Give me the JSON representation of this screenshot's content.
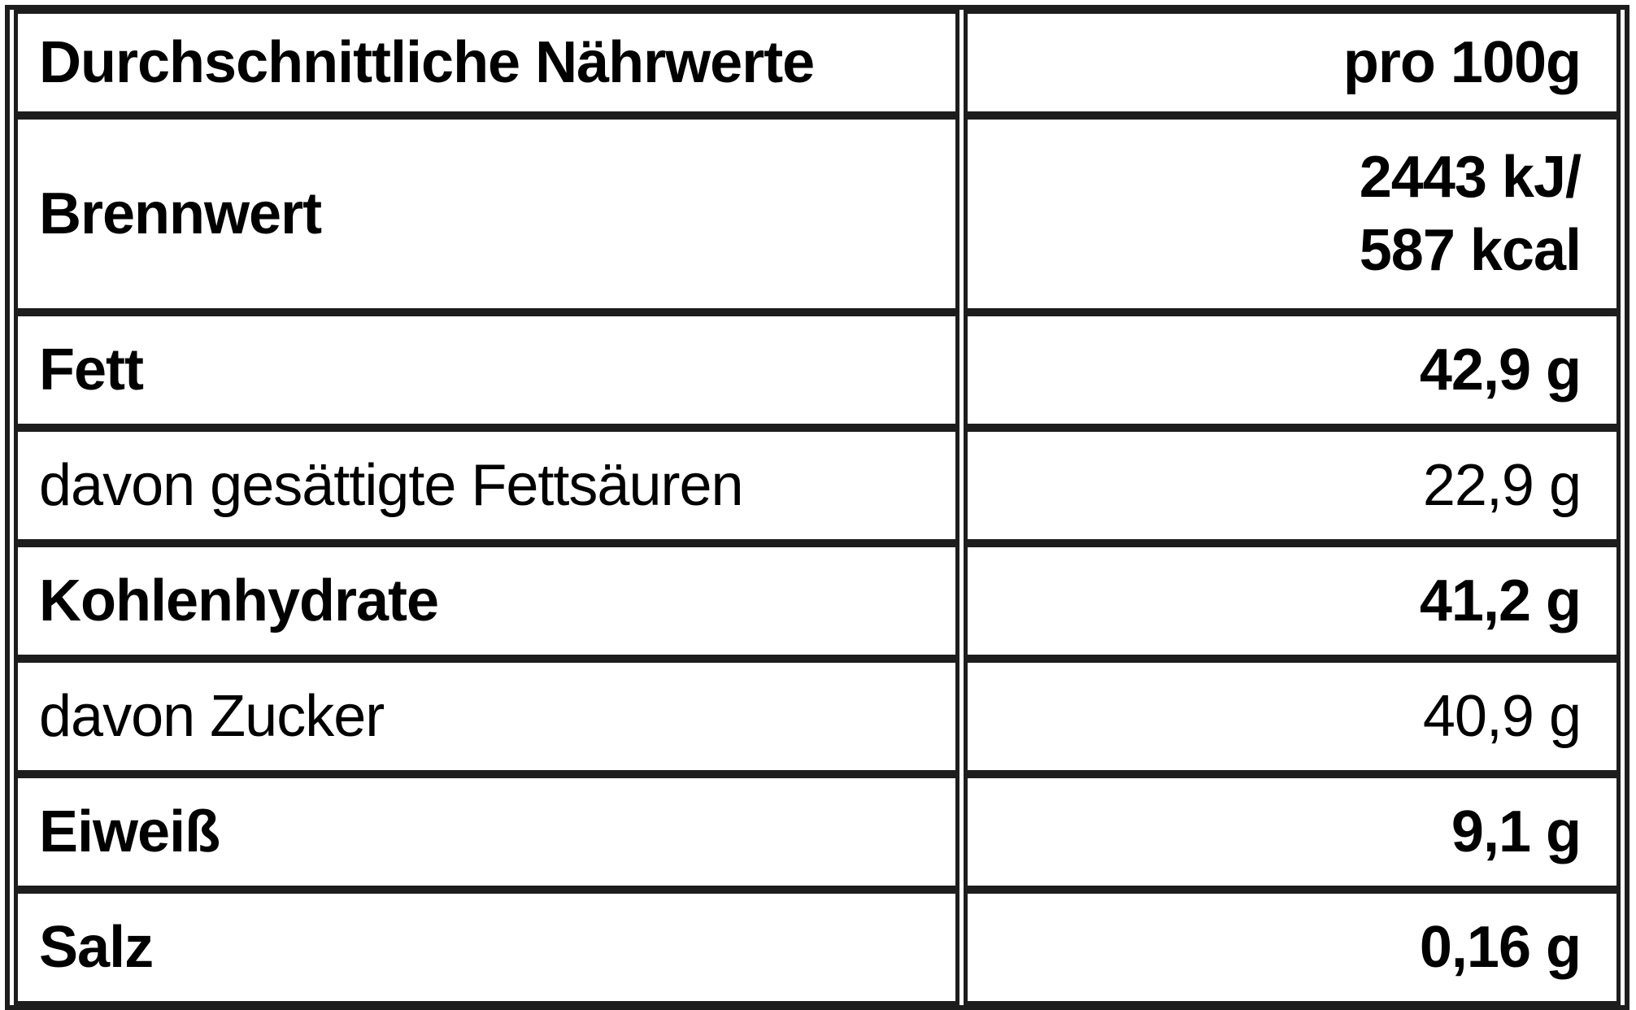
{
  "colors": {
    "border": "#1d1d1d",
    "text": "#000000",
    "background": "#ffffff"
  },
  "header": {
    "label": "Durchschnittliche Nährwerte",
    "unit": "pro 100g"
  },
  "rows": [
    {
      "id": "brennwert",
      "label": "Brennwert",
      "value": "2443 kJ/\n587 kcal",
      "emphasis": "bold"
    },
    {
      "id": "fett",
      "label": "Fett",
      "value": "42,9 g",
      "emphasis": "bold"
    },
    {
      "id": "gesaettigte-fettsaeuren",
      "label": "davon gesättigte Fettsäuren",
      "value": "22,9 g",
      "emphasis": "regular"
    },
    {
      "id": "kohlenhydrate",
      "label": "Kohlenhydrate",
      "value": "41,2 g",
      "emphasis": "bold"
    },
    {
      "id": "zucker",
      "label": "davon Zucker",
      "value": "40,9 g",
      "emphasis": "regular"
    },
    {
      "id": "eiweiss",
      "label": "Eiweiß",
      "value": "9,1 g",
      "emphasis": "bold"
    },
    {
      "id": "salz",
      "label": "Salz",
      "value": "0,16 g",
      "emphasis": "bold"
    }
  ]
}
